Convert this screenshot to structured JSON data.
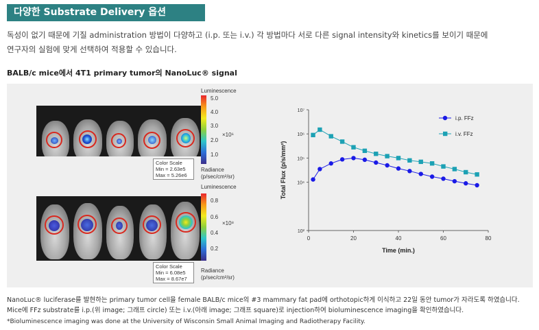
{
  "section_title": "다양한 Substrate Delivery 옵션",
  "intro": {
    "line1": "독성이 없기 때문에 기질 administration 방법이 다양하고 (i.p. 또는 i.v.) 각 방법마다 서로 다른 signal intensity와 kinetics를 보이기 때문에",
    "line2": "연구자의 실험에 맞게 선택하여 적용할 수 있습니다."
  },
  "figure_title": "BALB/c mice에서 4T1 primary tumor의 NanoLuc® signal",
  "top_panel": {
    "heading": "Luminescence",
    "ticks": [
      "5.0",
      "4.0",
      "3.0",
      "2.0",
      "1.0"
    ],
    "multiplier": "×10⁶",
    "scale_title": "Color Scale",
    "scale_min": "Min = 2.63e5",
    "scale_max": "Max = 5.26e6",
    "radiance": "Radiance",
    "radiance_unit": "(p/sec/cm²/sr)"
  },
  "bottom_panel": {
    "heading": "Luminescence",
    "ticks": [
      "0.8",
      "0.6",
      "0.4",
      "0.2"
    ],
    "multiplier": "×10⁸",
    "scale_title": "Color Scale",
    "scale_min": "Min = 6.08e5",
    "scale_max": "Max = 8.67e7",
    "radiance": "Radiance",
    "radiance_unit": "(p/sec/cm²/sr)"
  },
  "chart_data": {
    "type": "line",
    "xlabel": "Time (min.)",
    "ylabel": "Total Flux (p/s/mm²)",
    "xlim": [
      0,
      80
    ],
    "x_ticks": [
      "0",
      "20",
      "40",
      "60",
      "80"
    ],
    "y_scale": "log",
    "ylim": [
      100,
      10000000
    ],
    "y_ticks": [
      "10⁷",
      "10⁶",
      "10⁵",
      "10⁴",
      "10²"
    ],
    "legend_position": "top-right",
    "series": [
      {
        "name": "i.p. FFz",
        "color": "#1a1ae6",
        "marker": "circle",
        "x": [
          2,
          5,
          10,
          15,
          20,
          25,
          30,
          35,
          40,
          45,
          50,
          55,
          60,
          65,
          70,
          75
        ],
        "y": [
          13000,
          35000,
          60000,
          88000,
          100000,
          85000,
          65000,
          50000,
          37000,
          29000,
          22000,
          17000,
          14000,
          11000,
          9000,
          7500
        ]
      },
      {
        "name": "i.v. FFz",
        "color": "#1ca1b4",
        "marker": "square",
        "x": [
          2,
          5,
          10,
          15,
          20,
          25,
          30,
          35,
          40,
          45,
          50,
          55,
          60,
          65,
          70,
          75
        ],
        "y": [
          900000,
          1500000,
          800000,
          480000,
          280000,
          200000,
          150000,
          120000,
          100000,
          80000,
          70000,
          60000,
          45000,
          35000,
          26000,
          21000
        ]
      }
    ]
  },
  "captions": {
    "line1": "NanoLuc® luciferase를 발현하는 primary tumor cell을 female BALB/c mice의 #3 mammary fat pad에 orthotopic하게 이식하고 22일 동안 tumor가 자라도록 하였습니다.",
    "line2": "Mice에 FFz substrate를 i.p.(위 image; 그래프 circle) 또는 i.v.(아래 image; 그래프 square)로 injection하여 bioluminescence imaging을 확인하였습니다.",
    "line3": "*Bioluminescence imaging was done at the University of Wisconsin Small Animal Imaging and Radiotherapy Facility."
  }
}
